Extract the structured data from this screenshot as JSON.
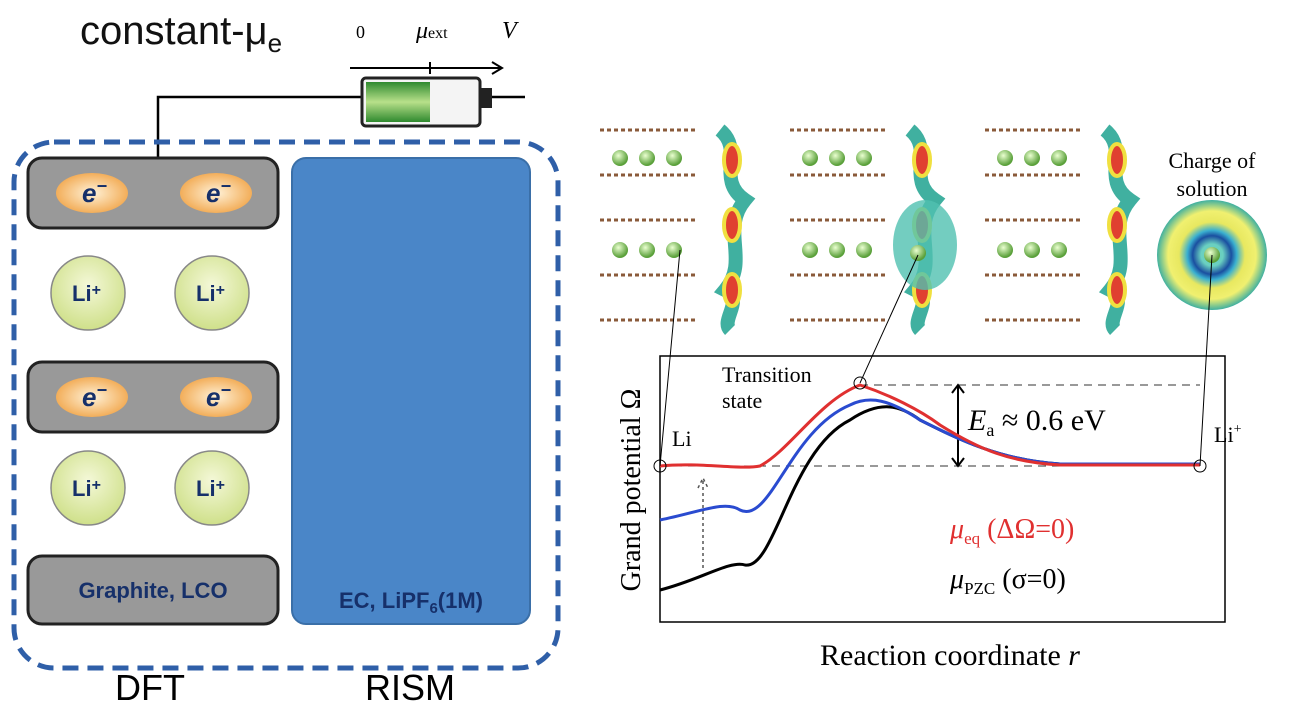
{
  "header": {
    "title": "constant-μ",
    "title_sub": "e"
  },
  "battery": {
    "zero": "0",
    "mu": "μ",
    "mu_sub": "ext",
    "v": "V"
  },
  "left": {
    "electrons": [
      {
        "label": "e",
        "charge": "−"
      },
      {
        "label": "e",
        "charge": "−"
      },
      {
        "label": "e",
        "charge": "−"
      },
      {
        "label": "e",
        "charge": "−"
      }
    ],
    "ions": [
      {
        "label": "Li",
        "charge": "+"
      },
      {
        "label": "Li",
        "charge": "+"
      },
      {
        "label": "Li",
        "charge": "+"
      },
      {
        "label": "Li",
        "charge": "+"
      }
    ],
    "electrode": "Graphite, LCO",
    "solution": {
      "pre": "EC, LiPF",
      "sub": "6",
      "post": "(1M)"
    },
    "dft": "DFT",
    "rism": "RISM"
  },
  "right": {
    "charge_label": [
      "Charge of",
      "solution"
    ],
    "transition": [
      "Transition",
      "state"
    ],
    "li": "Li",
    "li_plus": {
      "label": "Li",
      "charge": "+"
    },
    "barrier": {
      "e": "E",
      "sub": "a",
      "rest": " ≈ 0.6 eV"
    },
    "mu_eq": {
      "mu": "μ",
      "sub": "eq",
      "rest": " (ΔΩ=0)"
    },
    "mu_pzc": {
      "mu": "μ",
      "sub": "PZC",
      "rest": " (σ=0)"
    },
    "y_label": "Grand potential Ω",
    "x_label": {
      "text": "Reaction coordinate ",
      "var": "r"
    }
  }
}
